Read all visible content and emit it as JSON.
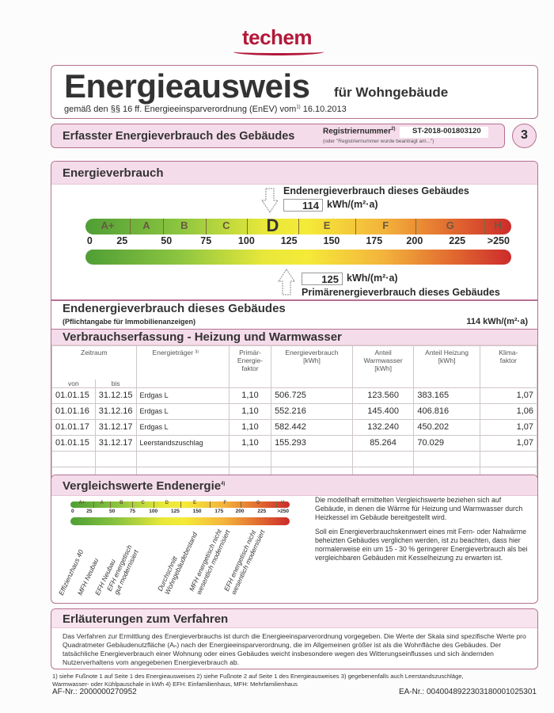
{
  "logo": "techem",
  "title": {
    "main": "Energieausweis",
    "sub": "für Wohngebäude",
    "legal": "gemäß den §§ 16 ff. Energieeinsparverordnung (EnEV) vom",
    "legal_sup": "1)",
    "date": "16.10.2013"
  },
  "section_bar": {
    "title": "Erfasster Energieverbrauch des Gebäudes",
    "reg_label": "Registriernummer",
    "reg_sup": "2)",
    "reg_value": "ST-2018-001803120",
    "reg_note": "(oder \"Registriernummer wurde beantragt am...\")",
    "page": "3"
  },
  "energy": {
    "title": "Energieverbrauch",
    "end_label": "Endenergieverbrauch dieses Gebäudes",
    "end_value": "114",
    "unit": "kWh/(m²·a)",
    "prim_value": "125",
    "prim_label": "Primärenergieverbrauch dieses Gebäudes",
    "classes": [
      "A+",
      "A",
      "B",
      "C",
      "D",
      "E",
      "F",
      "G",
      "H"
    ],
    "active_class": "D",
    "ticks": [
      "0",
      "25",
      "50",
      "75",
      "100",
      "125",
      "150",
      "175",
      "200",
      "225",
      ">250"
    ]
  },
  "pflicht": {
    "title": "Endenergieverbrauch dieses Gebäudes",
    "note": "(Pflichtangabe für Immobilienanzeigen)",
    "value": "114  kWh/(m²·a)"
  },
  "verbrauch": {
    "title": "Verbrauchserfassung - Heizung und Warmwasser",
    "headers": {
      "zeitraum": "Zeitraum",
      "von": "von",
      "bis": "bis",
      "traeger": "Energieträger ³⁾",
      "primaer": "Primär-\nEnergie-\nfaktor",
      "verbrauch": "Energieverbrauch\n[kWh]",
      "warmwasser": "Anteil\nWarmwasser\n[kWh]",
      "heizung": "Anteil Heizung\n[kWh]",
      "klima": "Klima-\nfaktor"
    },
    "rows": [
      [
        "01.01.15",
        "31.12.15",
        "Erdgas L",
        "1,10",
        "506.725",
        "123.560",
        "383.165",
        "1,07"
      ],
      [
        "01.01.16",
        "31.12.16",
        "Erdgas L",
        "1,10",
        "552.216",
        "145.400",
        "406.816",
        "1,06"
      ],
      [
        "01.01.17",
        "31.12.17",
        "Erdgas L",
        "1,10",
        "582.442",
        "132.240",
        "450.202",
        "1,07"
      ],
      [
        "01.01.15",
        "31.12.17",
        "Leerstandszuschlag",
        "1,10",
        "155.293",
        "85.264",
        "70.029",
        "1,07"
      ]
    ]
  },
  "vergleich": {
    "title": "Vergleichswerte Endenergie",
    "sup": "4)",
    "classes": [
      "A+",
      "A",
      "B",
      "C",
      "D",
      "E",
      "F",
      "G",
      "H"
    ],
    "ticks": [
      "0",
      "25",
      "50",
      "75",
      "100",
      "125",
      "150",
      "175",
      "200",
      "225",
      ">250"
    ],
    "labels": [
      "Effizienzhaus 40",
      "MFH Neubau",
      "EFH Neubau",
      "EFH energetisch\ngut modernisiert",
      "Durchschnitt\nWohngebäudebestand",
      "MFH energetisch nicht\nwesentlich modernisiert",
      "EFH energetisch nicht\nwesentlich modernisiert"
    ],
    "text1": "Die modellhaft ermittelten Vergleichswerte beziehen sich auf Gebäude, in denen die Wärme für Heizung und Warmwasser durch Heizkessel im Gebäude bereitgestellt wird.",
    "text2": "Soll ein Energieverbrauchskennwert eines mit Fern- oder Nahwärme beheizten Gebäudes verglichen werden, ist zu beachten, dass hier normalerweise ein um 15 - 30 % geringerer Energieverbrauch als bei vergleichbaren Gebäuden mit Kesselheizung zu erwarten ist."
  },
  "erlaeuterung": {
    "title": "Erläuterungen zum Verfahren",
    "text": "Das Verfahren zur Ermittlung des Energieverbrauchs ist durch die Energieeinsparverordnung vorgegeben. Die Werte der Skala sind spezifische Werte pro Quadratmeter Gebäudenutzfläche (Aₙ) nach der Energieeinsparverordnung, die im Allgemeinen größer ist als die Wohnfläche des Gebäudes. Der tatsächliche Energieverbrauch einer Wohnung oder eines Gebäudes weicht insbesondere wegen des Witterungseinflusses und sich ändernden Nutzerverhaltens vom angegebenen Energieverbrauch ab."
  },
  "footer": {
    "notes": "1) siehe Fußnote 1 auf Seite 1 des Energieausweises  2) siehe Fußnote 2 auf Seite 1 des Energieausweises  3) gegebenenfalls auch Leerstandszuschläge, Warmwasser- oder Kühlpauschale in kWh  4) EFH: Einfamilienhaus, MFH: Mehrfamilienhaus",
    "af": "AF-Nr.: 2000000270952",
    "ea": "EA-Nr.: 00400489223031800010253​01"
  },
  "colors": {
    "accent": "#b2183a",
    "frame": "#b5708f",
    "header_bg": "#f5dcea"
  }
}
